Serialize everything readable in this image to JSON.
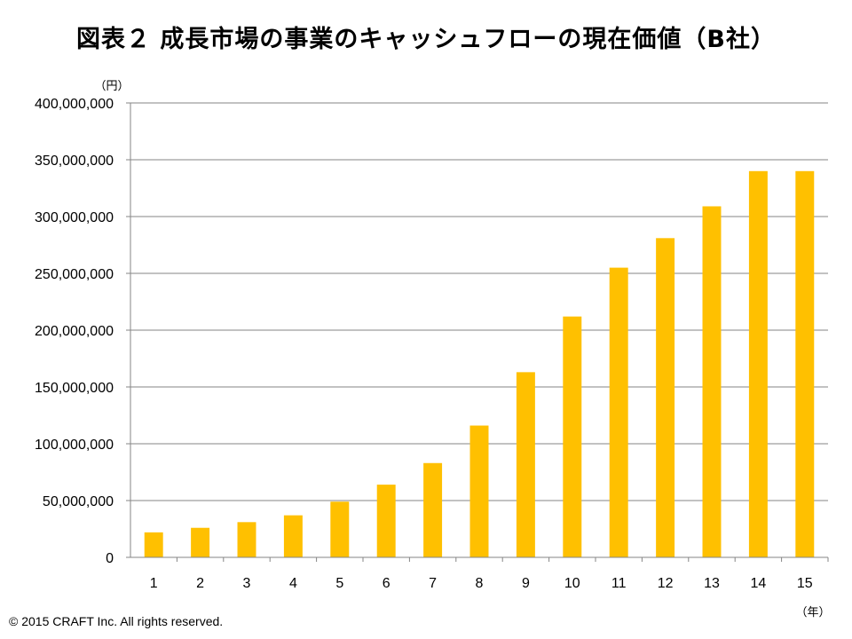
{
  "title": "図表２ 成長市場の事業のキャッシュフローの現在価値（B社）",
  "copyright": "© 2015 CRAFT Inc. All rights reserved.",
  "chart_data": {
    "type": "bar",
    "title": "図表２ 成長市場の事業のキャッシュフローの現在価値（B社）",
    "ylabel": "（円）",
    "xlabel": "（年）",
    "categories": [
      "1",
      "2",
      "3",
      "4",
      "5",
      "6",
      "7",
      "8",
      "9",
      "10",
      "11",
      "12",
      "13",
      "14",
      "15"
    ],
    "values": [
      22000000,
      26000000,
      31000000,
      37000000,
      49000000,
      64000000,
      83000000,
      116000000,
      163000000,
      212000000,
      255000000,
      281000000,
      309000000,
      340000000,
      340000000
    ],
    "ylim": [
      0,
      400000000
    ],
    "yticks": [
      "0",
      "50,000,000",
      "100,000,000",
      "150,000,000",
      "200,000,000",
      "250,000,000",
      "300,000,000",
      "350,000,000",
      "400,000,000"
    ],
    "grid": true,
    "bar_color": "#FFC000",
    "grid_color": "#868686",
    "legend": "none"
  }
}
